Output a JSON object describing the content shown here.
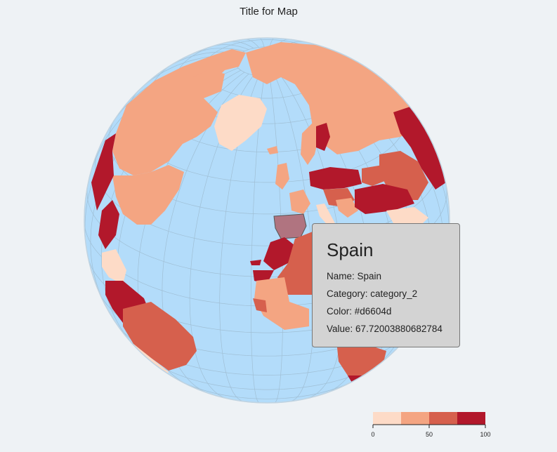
{
  "title": "Title for Map",
  "tooltip": {
    "heading": "Spain",
    "name_label": "Name:",
    "name": "Spain",
    "category_label": "Category:",
    "category": "category_2",
    "color_label": "Color:",
    "color": "#d6604d",
    "value_label": "Value:",
    "value": "67.72003880682784"
  },
  "legend": {
    "min": 0,
    "max": 100,
    "ticks": [
      "0",
      "50",
      "100"
    ],
    "colors": [
      "#fddbc7",
      "#f4a582",
      "#d6604d",
      "#b2182b"
    ]
  },
  "map_style": {
    "ocean": "#b3dcfa",
    "graticule": "#9bb8cc",
    "highlight": "#b07480"
  }
}
